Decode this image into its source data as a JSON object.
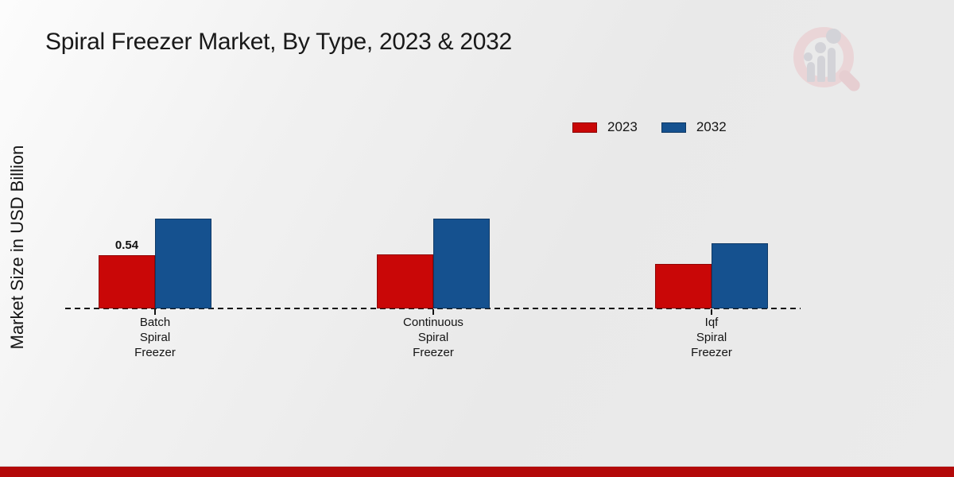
{
  "title": "Spiral Freezer Market, By Type, 2023 & 2032",
  "legend": [
    {
      "label": "2023",
      "color": "#c90707"
    },
    {
      "label": "2032",
      "color": "#15518f"
    }
  ],
  "branding": {
    "logo": "magnifier-bar-chart-watermark",
    "footer_color": "#b30909"
  },
  "chart_data": {
    "type": "bar",
    "title": "Spiral Freezer Market, By Type, 2023 & 2032",
    "ylabel": "Market Size in USD Billion",
    "xlabel": "",
    "categories": [
      "Batch\nSpiral\nFreezer",
      "Continuous\nSpiral\nFreezer",
      "Iqf\nSpiral\nFreezer"
    ],
    "series": [
      {
        "name": "2023",
        "color": "#c90707",
        "values": [
          0.54,
          0.55,
          0.45
        ],
        "value_labels": [
          "0.54",
          "",
          ""
        ]
      },
      {
        "name": "2032",
        "color": "#15518f",
        "values": [
          0.91,
          0.91,
          0.66
        ],
        "value_labels": [
          "",
          "",
          ""
        ]
      }
    ],
    "ylim": [
      0,
      1.2
    ],
    "grid": false,
    "axis_style": "dashed-baseline-only",
    "legend_position": "top-right"
  }
}
